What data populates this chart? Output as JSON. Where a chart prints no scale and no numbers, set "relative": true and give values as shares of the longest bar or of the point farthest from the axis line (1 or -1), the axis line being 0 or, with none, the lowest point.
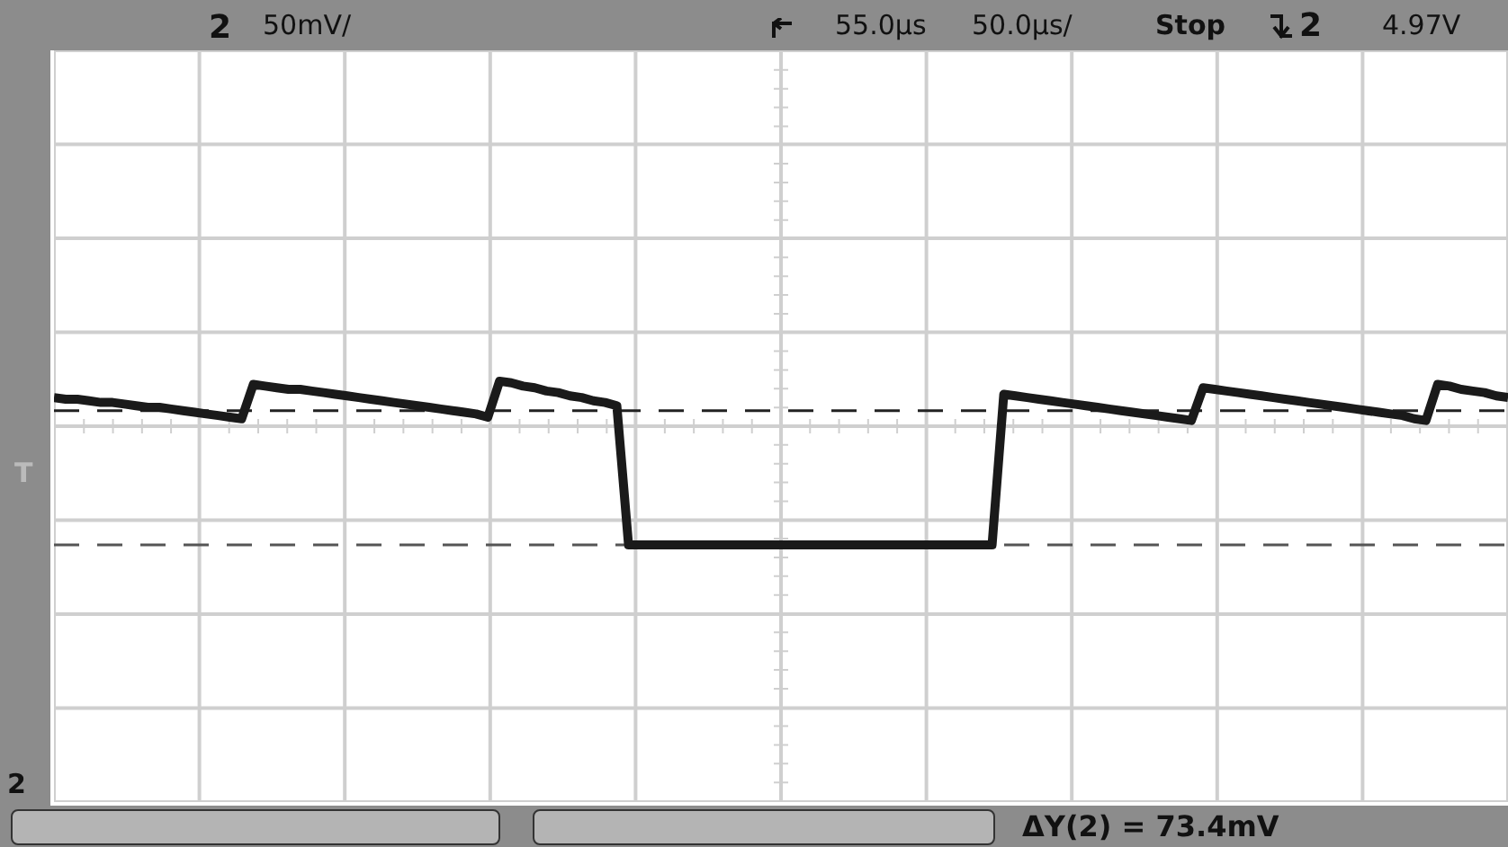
{
  "chart_data": {
    "type": "line",
    "relative": true,
    "grid": true,
    "legend": false,
    "marker": "none",
    "tick_labels": false,
    "categories": [
      null,
      null,
      null,
      null,
      null,
      null,
      null,
      null,
      null,
      null,
      null,
      null,
      null,
      null,
      null,
      null,
      null,
      null,
      null,
      null,
      null,
      null,
      null,
      null,
      null,
      null,
      null,
      null,
      null,
      null,
      null,
      null,
      null,
      null,
      null,
      null,
      null,
      null,
      null,
      null,
      null,
      null,
      null,
      null,
      null,
      null,
      null,
      null,
      null,
      null,
      null,
      null,
      null,
      null,
      null,
      null,
      null,
      null,
      null,
      null,
      null,
      null,
      null,
      null,
      null,
      null,
      null,
      null,
      null,
      null,
      null,
      null,
      null,
      null,
      null,
      null,
      null,
      null,
      null,
      null,
      null,
      null,
      null,
      null,
      null,
      null,
      null,
      null,
      null,
      null,
      null,
      null,
      null,
      null,
      null,
      null,
      null,
      null,
      null,
      null,
      null,
      null,
      null,
      null,
      null,
      null,
      null,
      null,
      null,
      null,
      null,
      null,
      null,
      null,
      null,
      null,
      null,
      null,
      null,
      null,
      null,
      null,
      null,
      null,
      null
    ],
    "series": [
      {
        "color": "#1a1a1a",
        "values": [
          0.9,
          0.89,
          0.89,
          0.88,
          0.87,
          0.87,
          0.86,
          0.85,
          0.84,
          0.84,
          0.83,
          0.82,
          0.81,
          0.8,
          0.79,
          0.78,
          0.77,
          0.98,
          0.97,
          0.96,
          0.95,
          0.95,
          0.94,
          0.93,
          0.92,
          0.91,
          0.9,
          0.89,
          0.88,
          0.87,
          0.86,
          0.85,
          0.84,
          0.83,
          0.82,
          0.81,
          0.8,
          0.78,
          1.0,
          0.99,
          0.97,
          0.96,
          0.94,
          0.93,
          0.91,
          0.9,
          0.88,
          0.87,
          0.85,
          0,
          0,
          0,
          0,
          0,
          0,
          0,
          0,
          0,
          0,
          0,
          0,
          0,
          0,
          0,
          0,
          0,
          0,
          0,
          0,
          0,
          0,
          0,
          0,
          0,
          0,
          0,
          0,
          0,
          0,
          0,
          0,
          0.92,
          0.91,
          0.9,
          0.89,
          0.88,
          0.87,
          0.86,
          0.85,
          0.84,
          0.83,
          0.82,
          0.81,
          0.8,
          0.79,
          0.78,
          0.77,
          0.76,
          0.96,
          0.95,
          0.94,
          0.93,
          0.92,
          0.91,
          0.9,
          0.89,
          0.88,
          0.87,
          0.86,
          0.85,
          0.84,
          0.83,
          0.82,
          0.81,
          0.8,
          0.79,
          0.77,
          0.76,
          0.98,
          0.97,
          0.95,
          0.94,
          0.93,
          0.91,
          0.9
        ]
      }
    ],
    "ref_lines": [
      {
        "axis": "y",
        "value": 0.82,
        "color": "#222222",
        "line_style": "dashed"
      },
      {
        "axis": "y",
        "value": 0,
        "color": "#555555",
        "line_style": "dashed"
      }
    ],
    "annotations": [
      "2",
      "50mV/",
      "55.0µs",
      "50.0µs/",
      "Stop",
      "2",
      "4.97V",
      "T",
      "2",
      "ΔY(2) = 73.4mV"
    ]
  }
}
